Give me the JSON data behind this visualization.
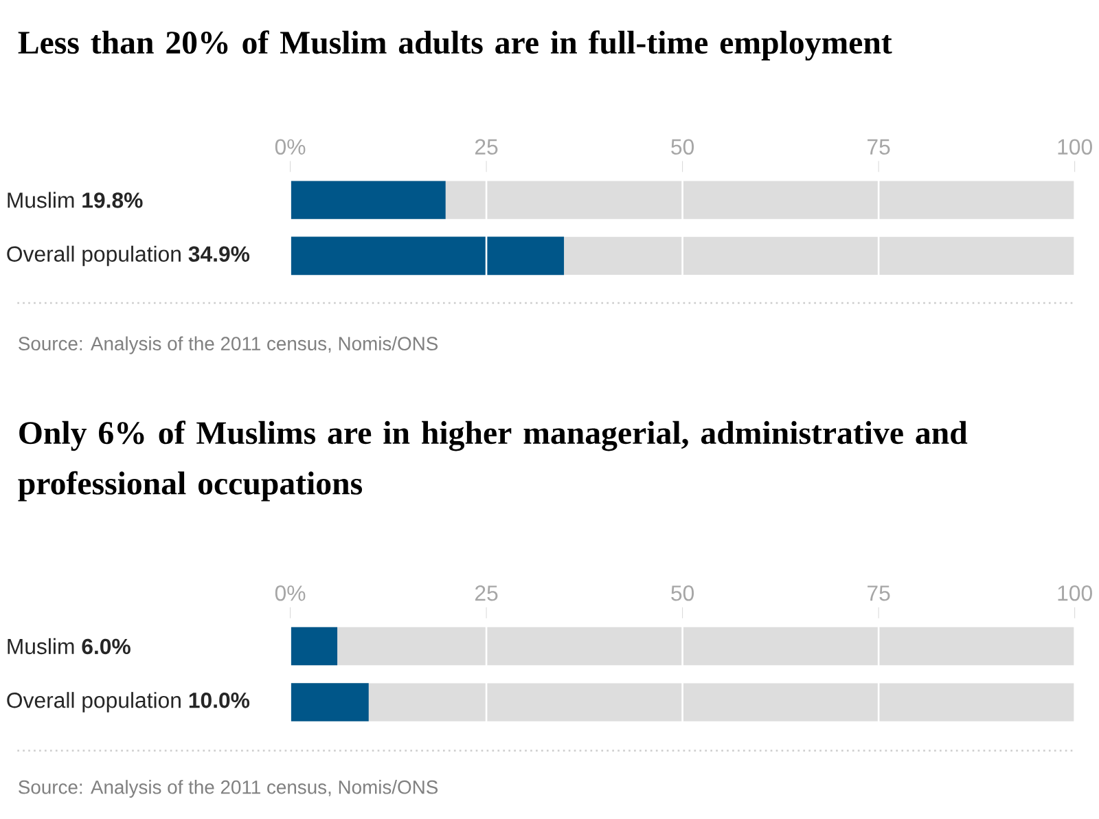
{
  "chart_data": [
    {
      "type": "bar",
      "orientation": "horizontal",
      "title": "Less than 20% of Muslim adults are in full-time employment",
      "categories": [
        "Muslim **19.8%**",
        "Overall population **34.9%**"
      ],
      "values": [
        19.8,
        34.9
      ],
      "color": "#005689",
      "xlim": [
        0,
        100
      ],
      "xticks": [
        {
          "value": 0,
          "label": "0%"
        },
        25,
        50,
        75,
        100
      ],
      "grid": "x",
      "annotations": [
        "Source: Analysis of the 2011 census, Nomis/ONS"
      ]
    },
    {
      "type": "bar",
      "orientation": "horizontal",
      "title": "Only 6% of Muslims are in higher managerial, administrative and professional occupations",
      "categories": [
        "Muslim **6.0%**",
        "Overall population **10.0%**"
      ],
      "values": [
        6.0,
        10.0
      ],
      "color": "#005689",
      "xlim": [
        0,
        100
      ],
      "xticks": [
        {
          "value": 0,
          "label": "0%"
        },
        25,
        50,
        75,
        100
      ],
      "grid": "x",
      "annotations": [
        "Source: Analysis of the 2011 census, Nomis/ONS"
      ]
    }
  ]
}
